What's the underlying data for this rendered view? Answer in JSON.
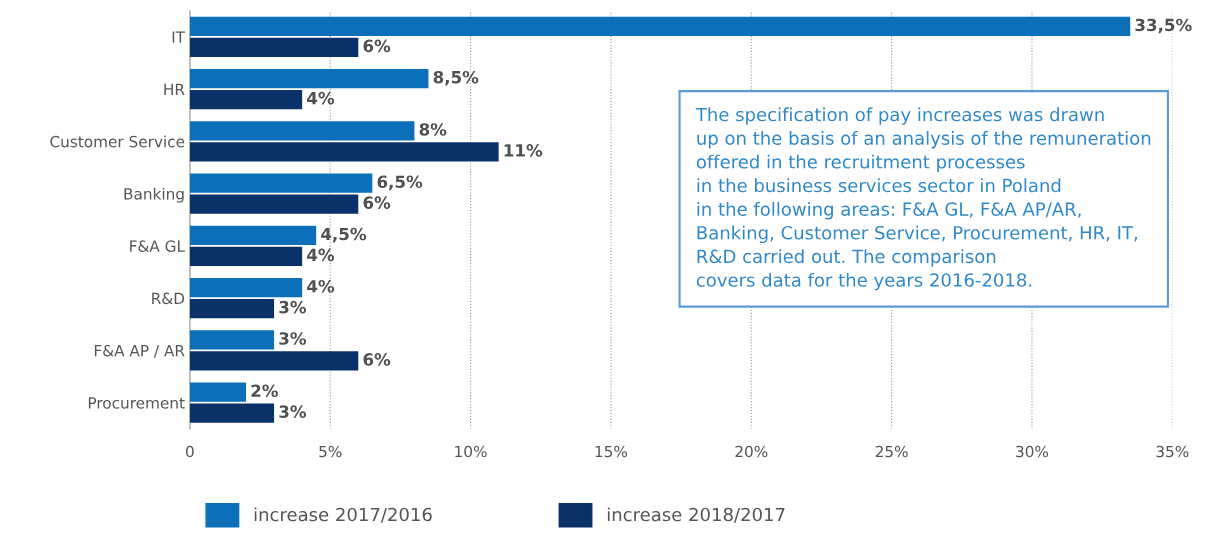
{
  "chart_data": {
    "type": "bar",
    "orientation": "horizontal",
    "categories": [
      "IT",
      "HR",
      "Customer Service",
      "Banking",
      "F&A GL",
      "R&D",
      "F&A AP / AR",
      "Procurement"
    ],
    "series": [
      {
        "name": "increase 2017/2016",
        "color": "#0b70b9",
        "values": [
          33.5,
          8.5,
          8,
          6.5,
          4.5,
          4,
          3,
          2
        ],
        "value_labels": [
          "33,5%",
          "8,5%",
          "8%",
          "6,5%",
          "4,5%",
          "4%",
          "3%",
          "2%"
        ]
      },
      {
        "name": "increase 2018/2017",
        "color": "#0b3268",
        "values": [
          6,
          4,
          11,
          6,
          4,
          3,
          6,
          3
        ],
        "value_labels": [
          "6%",
          "4%",
          "11%",
          "6%",
          "4%",
          "3%",
          "6%",
          "3%"
        ]
      }
    ],
    "xlim": [
      0,
      35
    ],
    "xticks": [
      0,
      {
        "value": 5,
        "label": "5%"
      },
      {
        "value": 10,
        "label": "10%"
      },
      {
        "value": 15,
        "label": "15%"
      },
      {
        "value": 20,
        "label": "20%"
      },
      {
        "value": 25,
        "label": "25%"
      },
      {
        "value": 30,
        "label": "30%"
      },
      {
        "value": 35,
        "label": "35%"
      }
    ],
    "grid": "x",
    "legend": "bottom",
    "annotations": [
      "The specification of pay increases was drawn\nup on the basis of an analysis of the remuneration\noffered in the recruitment processes\nin the business services sector in Poland\nin the following areas: F&A GL, F&A AP/AR,\nBanking, Customer Service, Procurement, HR, IT,\nR&D carried out. The comparison\ncovers data for the years 2016-2018."
    ]
  }
}
